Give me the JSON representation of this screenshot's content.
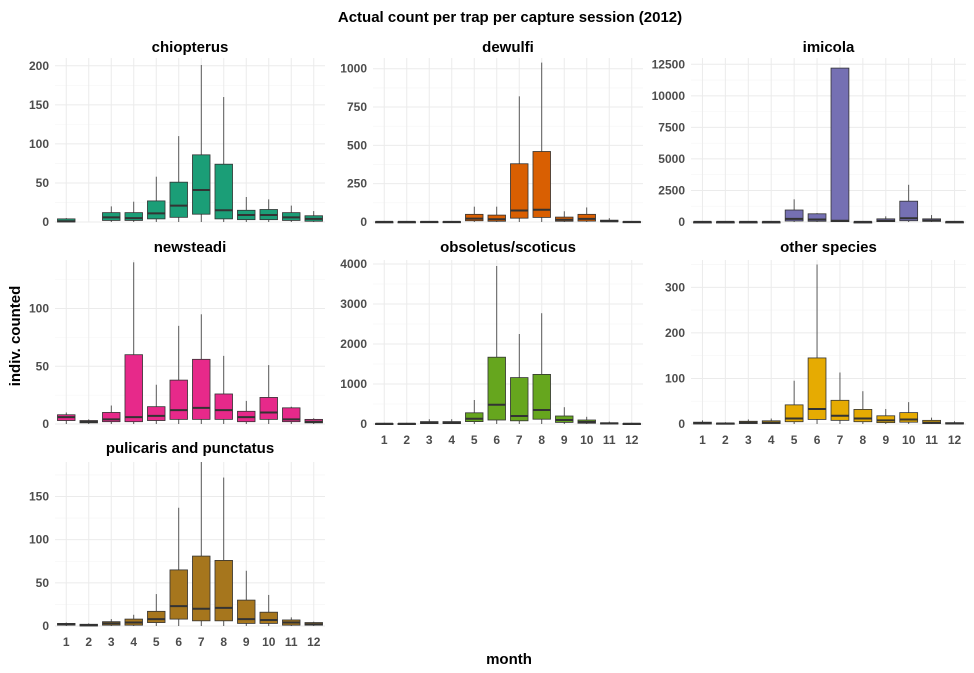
{
  "chart_data": {
    "type": "boxplot",
    "title": "Actual count per trap per capture session (2012)",
    "xlabel": "month",
    "ylabel": "indiv. counted",
    "x_ticks": [
      "1",
      "2",
      "3",
      "4",
      "5",
      "6",
      "7",
      "8",
      "9",
      "10",
      "11",
      "12"
    ],
    "facets": [
      {
        "name": "chiopterus",
        "color": "#1b9e77",
        "ylim": [
          0,
          210
        ],
        "yticks": [
          0,
          50,
          100,
          150,
          200
        ],
        "xaxis": false,
        "boxes": [
          {
            "month": 1,
            "min": 0,
            "q1": 0,
            "median": 1,
            "q3": 4,
            "max": 5
          },
          {
            "month": 3,
            "min": 0,
            "q1": 2,
            "median": 6,
            "q3": 12,
            "max": 20
          },
          {
            "month": 4,
            "min": 0,
            "q1": 2,
            "median": 5,
            "q3": 12,
            "max": 26
          },
          {
            "month": 5,
            "min": 0,
            "q1": 4,
            "median": 11,
            "q3": 27,
            "max": 58
          },
          {
            "month": 6,
            "min": 0,
            "q1": 6,
            "median": 21,
            "q3": 51,
            "max": 110
          },
          {
            "month": 7,
            "min": 0,
            "q1": 10,
            "median": 41,
            "q3": 86,
            "max": 201
          },
          {
            "month": 8,
            "min": 0,
            "q1": 4,
            "median": 15,
            "q3": 74,
            "max": 160
          },
          {
            "month": 9,
            "min": 0,
            "q1": 3,
            "median": 9,
            "q3": 15,
            "max": 32
          },
          {
            "month": 10,
            "min": 0,
            "q1": 3,
            "median": 9,
            "q3": 16,
            "max": 29
          },
          {
            "month": 11,
            "min": 0,
            "q1": 2,
            "median": 6,
            "q3": 12,
            "max": 21
          },
          {
            "month": 12,
            "min": 0,
            "q1": 1,
            "median": 4,
            "q3": 8,
            "max": 14
          }
        ]
      },
      {
        "name": "dewulfi",
        "color": "#d95f02",
        "ylim": [
          0,
          1070
        ],
        "yticks": [
          0,
          250,
          500,
          750,
          1000
        ],
        "xaxis": false,
        "boxes": [
          {
            "month": 1,
            "min": 0,
            "q1": 0,
            "median": 1,
            "q3": 2,
            "max": 4
          },
          {
            "month": 2,
            "min": 0,
            "q1": 0,
            "median": 1,
            "q3": 2,
            "max": 4
          },
          {
            "month": 3,
            "min": 0,
            "q1": 0,
            "median": 1,
            "q3": 3,
            "max": 6
          },
          {
            "month": 4,
            "min": 0,
            "q1": 0,
            "median": 1,
            "q3": 3,
            "max": 6
          },
          {
            "month": 5,
            "min": 0,
            "q1": 8,
            "median": 22,
            "q3": 50,
            "max": 100
          },
          {
            "month": 6,
            "min": 0,
            "q1": 5,
            "median": 18,
            "q3": 45,
            "max": 100
          },
          {
            "month": 7,
            "min": 0,
            "q1": 25,
            "median": 75,
            "q3": 380,
            "max": 820
          },
          {
            "month": 8,
            "min": 0,
            "q1": 30,
            "median": 80,
            "q3": 460,
            "max": 1040
          },
          {
            "month": 9,
            "min": 0,
            "q1": 5,
            "median": 15,
            "q3": 32,
            "max": 70
          },
          {
            "month": 10,
            "min": 0,
            "q1": 6,
            "median": 20,
            "q3": 50,
            "max": 95
          },
          {
            "month": 11,
            "min": 0,
            "q1": 2,
            "median": 5,
            "q3": 12,
            "max": 25
          },
          {
            "month": 12,
            "min": 0,
            "q1": 0,
            "median": 1,
            "q3": 3,
            "max": 6
          }
        ]
      },
      {
        "name": "imicola",
        "color": "#7570b3",
        "ylim": [
          0,
          13000
        ],
        "yticks": [
          0,
          2500,
          5000,
          7500,
          10000,
          12500
        ],
        "xaxis": false,
        "boxes": [
          {
            "month": 1,
            "min": 0,
            "q1": 0,
            "median": 5,
            "q3": 15,
            "max": 25
          },
          {
            "month": 2,
            "min": 0,
            "q1": 0,
            "median": 5,
            "q3": 15,
            "max": 25
          },
          {
            "month": 3,
            "min": 0,
            "q1": 0,
            "median": 5,
            "q3": 15,
            "max": 25
          },
          {
            "month": 4,
            "min": 0,
            "q1": 0,
            "median": 5,
            "q3": 15,
            "max": 25
          },
          {
            "month": 5,
            "min": 0,
            "q1": 80,
            "median": 250,
            "q3": 950,
            "max": 1800
          },
          {
            "month": 6,
            "min": 0,
            "q1": 60,
            "median": 200,
            "q3": 650,
            "max": 700
          },
          {
            "month": 7,
            "min": 0,
            "q1": 30,
            "median": 100,
            "q3": 12200,
            "max": 12200
          },
          {
            "month": 8,
            "min": 0,
            "q1": 0,
            "median": 5,
            "q3": 15,
            "max": 25
          },
          {
            "month": 9,
            "min": 0,
            "q1": 30,
            "median": 100,
            "q3": 250,
            "max": 450
          },
          {
            "month": 10,
            "min": 0,
            "q1": 100,
            "median": 300,
            "q3": 1650,
            "max": 2950
          },
          {
            "month": 11,
            "min": 0,
            "q1": 50,
            "median": 120,
            "q3": 250,
            "max": 550
          },
          {
            "month": 12,
            "min": 0,
            "q1": 0,
            "median": 5,
            "q3": 20,
            "max": 40
          }
        ]
      },
      {
        "name": "newsteadi",
        "color": "#e7298a",
        "ylim": [
          0,
          142
        ],
        "yticks": [
          0,
          50,
          100
        ],
        "xaxis": false,
        "boxes": [
          {
            "month": 1,
            "min": 0,
            "q1": 3,
            "median": 6,
            "q3": 8,
            "max": 10
          },
          {
            "month": 2,
            "min": 0,
            "q1": 1,
            "median": 2,
            "q3": 3,
            "max": 4
          },
          {
            "month": 3,
            "min": 0,
            "q1": 2,
            "median": 4,
            "q3": 10,
            "max": 16
          },
          {
            "month": 4,
            "min": 0,
            "q1": 2,
            "median": 6,
            "q3": 60,
            "max": 140
          },
          {
            "month": 5,
            "min": 0,
            "q1": 3,
            "median": 7,
            "q3": 15,
            "max": 34
          },
          {
            "month": 6,
            "min": 0,
            "q1": 4,
            "median": 12,
            "q3": 38,
            "max": 85
          },
          {
            "month": 7,
            "min": 0,
            "q1": 4,
            "median": 14,
            "q3": 56,
            "max": 95
          },
          {
            "month": 8,
            "min": 0,
            "q1": 4,
            "median": 12,
            "q3": 26,
            "max": 59
          },
          {
            "month": 9,
            "min": 0,
            "q1": 2,
            "median": 6,
            "q3": 11,
            "max": 20
          },
          {
            "month": 10,
            "min": 0,
            "q1": 4,
            "median": 10,
            "q3": 23,
            "max": 51
          },
          {
            "month": 11,
            "min": 0,
            "q1": 2,
            "median": 4,
            "q3": 14,
            "max": 15
          },
          {
            "month": 12,
            "min": 0,
            "q1": 1,
            "median": 2,
            "q3": 4,
            "max": 5
          }
        ]
      },
      {
        "name": "obsoletus/scoticus",
        "color": "#66a61e",
        "ylim": [
          0,
          4100
        ],
        "yticks": [
          0,
          1000,
          2000,
          3000,
          4000
        ],
        "xaxis": true,
        "boxes": [
          {
            "month": 1,
            "min": 0,
            "q1": 0,
            "median": 5,
            "q3": 15,
            "max": 30
          },
          {
            "month": 2,
            "min": 0,
            "q1": 0,
            "median": 5,
            "q3": 15,
            "max": 30
          },
          {
            "month": 3,
            "min": 0,
            "q1": 10,
            "median": 30,
            "q3": 60,
            "max": 120
          },
          {
            "month": 4,
            "min": 0,
            "q1": 10,
            "median": 30,
            "q3": 60,
            "max": 120
          },
          {
            "month": 5,
            "min": 0,
            "q1": 60,
            "median": 130,
            "q3": 280,
            "max": 600
          },
          {
            "month": 6,
            "min": 0,
            "q1": 100,
            "median": 480,
            "q3": 1670,
            "max": 3950
          },
          {
            "month": 7,
            "min": 0,
            "q1": 80,
            "median": 200,
            "q3": 1160,
            "max": 2250
          },
          {
            "month": 8,
            "min": 0,
            "q1": 120,
            "median": 350,
            "q3": 1240,
            "max": 2770
          },
          {
            "month": 9,
            "min": 0,
            "q1": 40,
            "median": 100,
            "q3": 200,
            "max": 420
          },
          {
            "month": 10,
            "min": 0,
            "q1": 20,
            "median": 50,
            "q3": 100,
            "max": 180
          },
          {
            "month": 11,
            "min": 0,
            "q1": 5,
            "median": 15,
            "q3": 30,
            "max": 60
          },
          {
            "month": 12,
            "min": 0,
            "q1": 0,
            "median": 5,
            "q3": 15,
            "max": 30
          }
        ]
      },
      {
        "name": "other species",
        "color": "#e6ab02",
        "ylim": [
          0,
          360
        ],
        "yticks": [
          0,
          100,
          200,
          300
        ],
        "xaxis": true,
        "boxes": [
          {
            "month": 1,
            "min": 0,
            "q1": 0,
            "median": 2,
            "q3": 4,
            "max": 8
          },
          {
            "month": 2,
            "min": 0,
            "q1": 0,
            "median": 1,
            "q3": 2,
            "max": 4
          },
          {
            "month": 3,
            "min": 0,
            "q1": 1,
            "median": 3,
            "q3": 6,
            "max": 10
          },
          {
            "month": 4,
            "min": 0,
            "q1": 1,
            "median": 3,
            "q3": 7,
            "max": 12
          },
          {
            "month": 5,
            "min": 0,
            "q1": 5,
            "median": 12,
            "q3": 42,
            "max": 95
          },
          {
            "month": 6,
            "min": 0,
            "q1": 10,
            "median": 33,
            "q3": 145,
            "max": 350
          },
          {
            "month": 7,
            "min": 0,
            "q1": 8,
            "median": 18,
            "q3": 52,
            "max": 113
          },
          {
            "month": 8,
            "min": 0,
            "q1": 5,
            "median": 12,
            "q3": 32,
            "max": 72
          },
          {
            "month": 9,
            "min": 0,
            "q1": 3,
            "median": 8,
            "q3": 18,
            "max": 33
          },
          {
            "month": 10,
            "min": 0,
            "q1": 4,
            "median": 10,
            "q3": 25,
            "max": 48
          },
          {
            "month": 11,
            "min": 0,
            "q1": 1,
            "median": 3,
            "q3": 8,
            "max": 14
          },
          {
            "month": 12,
            "min": 0,
            "q1": 0,
            "median": 1,
            "q3": 3,
            "max": 6
          }
        ]
      },
      {
        "name": "pulicaris and punctatus",
        "color": "#a6761d",
        "ylim": [
          0,
          190
        ],
        "yticks": [
          0,
          50,
          100,
          150
        ],
        "xaxis": true,
        "boxes": [
          {
            "month": 1,
            "min": 0,
            "q1": 1,
            "median": 2,
            "q3": 3,
            "max": 4
          },
          {
            "month": 2,
            "min": 0,
            "q1": 0,
            "median": 1,
            "q3": 2,
            "max": 3
          },
          {
            "month": 3,
            "min": 0,
            "q1": 1,
            "median": 3,
            "q3": 5,
            "max": 8
          },
          {
            "month": 4,
            "min": 0,
            "q1": 1,
            "median": 4,
            "q3": 8,
            "max": 13
          },
          {
            "month": 5,
            "min": 0,
            "q1": 4,
            "median": 8,
            "q3": 17,
            "max": 37
          },
          {
            "month": 6,
            "min": 0,
            "q1": 8,
            "median": 23,
            "q3": 65,
            "max": 137
          },
          {
            "month": 7,
            "min": 0,
            "q1": 6,
            "median": 20,
            "q3": 81,
            "max": 190
          },
          {
            "month": 8,
            "min": 0,
            "q1": 6,
            "median": 21,
            "q3": 76,
            "max": 172
          },
          {
            "month": 9,
            "min": 0,
            "q1": 3,
            "median": 8,
            "q3": 30,
            "max": 64
          },
          {
            "month": 10,
            "min": 0,
            "q1": 3,
            "median": 7,
            "q3": 16,
            "max": 36
          },
          {
            "month": 11,
            "min": 0,
            "q1": 1,
            "median": 4,
            "q3": 7,
            "max": 10
          },
          {
            "month": 12,
            "min": 0,
            "q1": 1,
            "median": 2,
            "q3": 4,
            "max": 5
          }
        ]
      }
    ]
  }
}
